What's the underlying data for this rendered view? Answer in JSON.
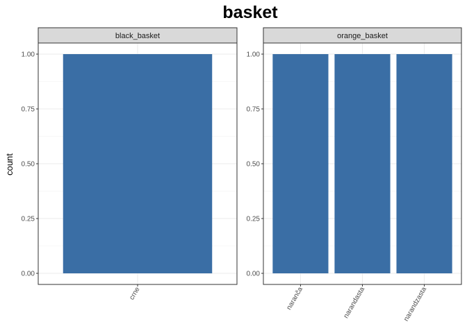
{
  "chart_data": {
    "type": "bar",
    "title": "basket",
    "xlabel": "",
    "ylabel": "count",
    "ylim": [
      0,
      1
    ],
    "y_ticks": [
      "0.00",
      "0.25",
      "0.50",
      "0.75",
      "1.00"
    ],
    "y_tick_values": [
      0,
      0.25,
      0.5,
      0.75,
      1
    ],
    "bar_color": "#3A6EA5",
    "grid": true,
    "facets": [
      {
        "label": "black_basket",
        "categories": [
          "crne"
        ],
        "values": [
          1
        ]
      },
      {
        "label": "orange_basket",
        "categories": [
          "naranča",
          "narandasta",
          "narandzasta"
        ],
        "values": [
          1,
          1,
          1
        ]
      }
    ]
  }
}
